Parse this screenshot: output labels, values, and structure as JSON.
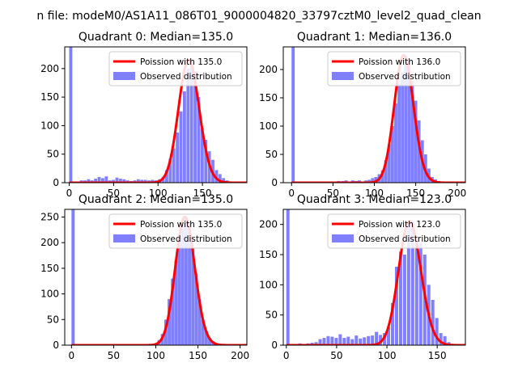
{
  "figure_title": "n file: modeM0/AS1A11_086T01_9000004820_33797cztM0_level2_quad_clean",
  "colors": {
    "poisson": "#ff0000",
    "observed": "#8080ff",
    "axis": "#000000",
    "background": "#ffffff"
  },
  "legend": {
    "poisson_prefix": "Poission with ",
    "observed_label": "Observed distribution"
  },
  "chart_data": [
    {
      "type": "bar",
      "title": "Quadrant 0: Median=135.0",
      "median": 135.0,
      "poisson_label": "Poission with 135.0",
      "xlim": [
        -5,
        200
      ],
      "ylim": [
        0,
        238
      ],
      "xticks": [
        0,
        50,
        100,
        150
      ],
      "yticks": [
        0,
        50,
        100,
        150,
        200
      ],
      "bin_width": 3.5,
      "bins": [
        [
          0,
          240
        ],
        [
          4,
          1
        ],
        [
          8,
          2
        ],
        [
          12,
          4
        ],
        [
          16,
          4
        ],
        [
          20,
          6
        ],
        [
          24,
          4
        ],
        [
          28,
          7
        ],
        [
          32,
          10
        ],
        [
          36,
          8
        ],
        [
          40,
          11
        ],
        [
          44,
          4
        ],
        [
          48,
          5
        ],
        [
          52,
          9
        ],
        [
          56,
          7
        ],
        [
          60,
          6
        ],
        [
          64,
          4
        ],
        [
          68,
          3
        ],
        [
          72,
          4
        ],
        [
          76,
          6
        ],
        [
          80,
          5
        ],
        [
          84,
          5
        ],
        [
          88,
          4
        ],
        [
          92,
          5
        ],
        [
          96,
          4
        ],
        [
          100,
          6
        ],
        [
          104,
          10
        ],
        [
          108,
          22
        ],
        [
          112,
          42
        ],
        [
          116,
          60
        ],
        [
          120,
          88
        ],
        [
          124,
          125
        ],
        [
          128,
          160
        ],
        [
          132,
          200
        ],
        [
          136,
          215
        ],
        [
          140,
          195
        ],
        [
          144,
          150
        ],
        [
          148,
          95
        ],
        [
          152,
          75
        ],
        [
          156,
          55
        ],
        [
          160,
          40
        ],
        [
          164,
          22
        ],
        [
          168,
          15
        ],
        [
          172,
          8
        ],
        [
          176,
          4
        ],
        [
          180,
          2
        ],
        [
          184,
          1
        ]
      ]
    },
    {
      "type": "bar",
      "title": "Quadrant 1: Median=136.0",
      "median": 136.0,
      "poisson_label": "Poission with 136.0",
      "xlim": [
        -10,
        210
      ],
      "ylim": [
        0,
        240
      ],
      "xticks": [
        0,
        50,
        100,
        150,
        200
      ],
      "yticks": [
        0,
        50,
        100,
        150,
        200
      ],
      "bin_width": 3.8,
      "bins": [
        [
          0,
          240
        ],
        [
          5,
          1
        ],
        [
          10,
          1
        ],
        [
          15,
          1
        ],
        [
          20,
          1
        ],
        [
          25,
          1
        ],
        [
          30,
          2
        ],
        [
          35,
          1
        ],
        [
          40,
          2
        ],
        [
          45,
          1
        ],
        [
          50,
          2
        ],
        [
          55,
          3
        ],
        [
          60,
          3
        ],
        [
          64,
          4
        ],
        [
          68,
          2
        ],
        [
          72,
          4
        ],
        [
          76,
          3
        ],
        [
          80,
          4
        ],
        [
          84,
          2
        ],
        [
          88,
          4
        ],
        [
          92,
          5
        ],
        [
          96,
          8
        ],
        [
          100,
          10
        ],
        [
          104,
          15
        ],
        [
          108,
          22
        ],
        [
          112,
          40
        ],
        [
          116,
          68
        ],
        [
          120,
          100
        ],
        [
          124,
          140
        ],
        [
          128,
          175
        ],
        [
          132,
          195
        ],
        [
          136,
          225
        ],
        [
          140,
          215
        ],
        [
          144,
          180
        ],
        [
          148,
          145
        ],
        [
          152,
          110
        ],
        [
          156,
          75
        ],
        [
          160,
          50
        ],
        [
          164,
          25
        ],
        [
          168,
          10
        ],
        [
          172,
          6
        ],
        [
          176,
          3
        ],
        [
          180,
          2
        ],
        [
          184,
          1
        ],
        [
          190,
          1
        ],
        [
          196,
          1
        ]
      ]
    },
    {
      "type": "bar",
      "title": "Quadrant 2: Median=135.0",
      "median": 135.0,
      "poisson_label": "Poission with 135.0",
      "xlim": [
        -8,
        208
      ],
      "ylim": [
        0,
        265
      ],
      "xticks": [
        0,
        50,
        100,
        150,
        200
      ],
      "yticks": [
        0,
        50,
        100,
        150,
        200,
        250
      ],
      "bin_width": 3.8,
      "bins": [
        [
          0,
          265
        ],
        [
          90,
          1
        ],
        [
          94,
          2
        ],
        [
          98,
          4
        ],
        [
          102,
          10
        ],
        [
          106,
          22
        ],
        [
          110,
          50
        ],
        [
          114,
          90
        ],
        [
          118,
          130
        ],
        [
          122,
          165
        ],
        [
          126,
          215
        ],
        [
          130,
          235
        ],
        [
          134,
          250
        ],
        [
          138,
          240
        ],
        [
          142,
          190
        ],
        [
          146,
          140
        ],
        [
          150,
          90
        ],
        [
          154,
          50
        ],
        [
          158,
          28
        ],
        [
          162,
          14
        ],
        [
          166,
          8
        ],
        [
          170,
          4
        ],
        [
          174,
          2
        ],
        [
          178,
          1
        ],
        [
          182,
          1
        ]
      ]
    },
    {
      "type": "bar",
      "title": "Quadrant 3: Median=123.0",
      "median": 123.0,
      "poisson_label": "Poission with 123.0",
      "xlim": [
        -3,
        178
      ],
      "ylim": [
        0,
        225
      ],
      "xticks": [
        0,
        50,
        100,
        150
      ],
      "yticks": [
        0,
        50,
        100,
        150,
        200
      ],
      "bin_width": 3.2,
      "bins": [
        [
          0,
          225
        ],
        [
          4,
          1
        ],
        [
          8,
          2
        ],
        [
          12,
          3
        ],
        [
          16,
          2
        ],
        [
          20,
          3
        ],
        [
          24,
          4
        ],
        [
          28,
          5
        ],
        [
          32,
          10
        ],
        [
          36,
          12
        ],
        [
          40,
          15
        ],
        [
          44,
          14
        ],
        [
          48,
          12
        ],
        [
          52,
          18
        ],
        [
          56,
          12
        ],
        [
          60,
          14
        ],
        [
          64,
          10
        ],
        [
          68,
          16
        ],
        [
          72,
          11
        ],
        [
          76,
          13
        ],
        [
          80,
          15
        ],
        [
          84,
          16
        ],
        [
          88,
          22
        ],
        [
          92,
          17
        ],
        [
          96,
          20
        ],
        [
          100,
          30
        ],
        [
          104,
          70
        ],
        [
          108,
          130
        ],
        [
          112,
          155
        ],
        [
          116,
          150
        ],
        [
          120,
          200
        ],
        [
          124,
          205
        ],
        [
          128,
          180
        ],
        [
          132,
          170
        ],
        [
          136,
          150
        ],
        [
          140,
          100
        ],
        [
          144,
          75
        ],
        [
          148,
          45
        ],
        [
          152,
          20
        ],
        [
          156,
          15
        ],
        [
          160,
          5
        ],
        [
          164,
          2
        ]
      ]
    }
  ]
}
